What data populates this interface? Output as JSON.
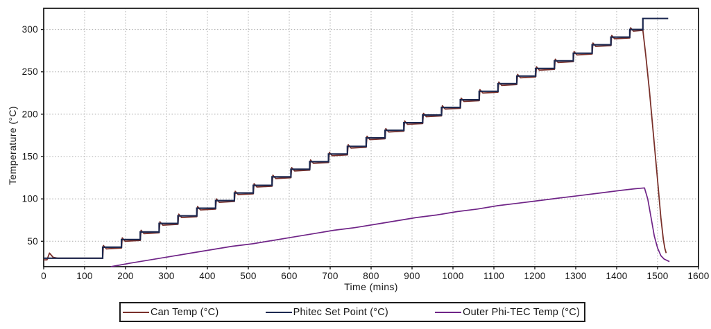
{
  "chart_data": {
    "type": "line",
    "title": "",
    "xlabel": "Time (mins)",
    "ylabel": "Temperature (°C)",
    "xlim": [
      0,
      1600
    ],
    "ylim": [
      20,
      325
    ],
    "xticks": [
      0,
      100,
      200,
      300,
      400,
      500,
      600,
      700,
      800,
      900,
      1000,
      1100,
      1200,
      1300,
      1400,
      1500,
      1600
    ],
    "yticks": [
      50,
      100,
      150,
      200,
      250,
      300
    ],
    "grid": true,
    "grid_color": "#a9a9a9",
    "axis_color": "#1c1c1c",
    "legend_position": "bottom-center",
    "series": [
      {
        "name": "Can Temp (°C)",
        "color": "#79302a",
        "shape": "staircase-follow",
        "baseline": 30,
        "start": [
          [
            0,
            28
          ],
          [
            8,
            28
          ],
          [
            14,
            36
          ],
          [
            23,
            31
          ],
          [
            34,
            30
          ]
        ],
        "drop": [
          [
            1464,
            299
          ],
          [
            1471,
            270
          ],
          [
            1480,
            228
          ],
          [
            1490,
            175
          ],
          [
            1500,
            122
          ],
          [
            1508,
            78
          ],
          [
            1514,
            52
          ],
          [
            1518,
            41
          ],
          [
            1521,
            36
          ]
        ]
      },
      {
        "name": "Phitec Set Point (°C)",
        "color": "#1d2950",
        "shape": "staircase",
        "baseline": 30,
        "risers": [
          [
            144,
            43
          ],
          [
            190,
            52
          ],
          [
            236,
            61
          ],
          [
            282,
            71
          ],
          [
            328,
            80
          ],
          [
            374,
            89
          ],
          [
            420,
            98
          ],
          [
            466,
            107
          ],
          [
            512,
            116
          ],
          [
            558,
            126
          ],
          [
            604,
            135
          ],
          [
            650,
            144
          ],
          [
            696,
            153
          ],
          [
            742,
            162
          ],
          [
            788,
            172
          ],
          [
            834,
            181
          ],
          [
            880,
            190
          ],
          [
            926,
            199
          ],
          [
            972,
            208
          ],
          [
            1018,
            217
          ],
          [
            1064,
            227
          ],
          [
            1110,
            236
          ],
          [
            1156,
            245
          ],
          [
            1202,
            254
          ],
          [
            1248,
            263
          ],
          [
            1294,
            272
          ],
          [
            1340,
            282
          ],
          [
            1386,
            291
          ],
          [
            1432,
            300
          ]
        ],
        "end_jump": {
          "t": 1464,
          "v": 313,
          "until": 1526
        }
      },
      {
        "name": "Outer Phi-TEC Temp (°C)",
        "color": "#6f2487",
        "shape": "poly",
        "points": [
          [
            164,
            20
          ],
          [
            210,
            24
          ],
          [
            260,
            28
          ],
          [
            310,
            32
          ],
          [
            360,
            36
          ],
          [
            410,
            40
          ],
          [
            460,
            44
          ],
          [
            510,
            47
          ],
          [
            560,
            51
          ],
          [
            610,
            55
          ],
          [
            660,
            59
          ],
          [
            710,
            63
          ],
          [
            760,
            66
          ],
          [
            810,
            70
          ],
          [
            860,
            74
          ],
          [
            910,
            78
          ],
          [
            960,
            81
          ],
          [
            1010,
            85
          ],
          [
            1060,
            88
          ],
          [
            1110,
            92
          ],
          [
            1160,
            95
          ],
          [
            1210,
            98
          ],
          [
            1260,
            101
          ],
          [
            1310,
            104
          ],
          [
            1360,
            107
          ],
          [
            1410,
            110
          ],
          [
            1445,
            112
          ],
          [
            1468,
            113
          ],
          [
            1476,
            100
          ],
          [
            1484,
            78
          ],
          [
            1492,
            56
          ],
          [
            1500,
            42
          ],
          [
            1508,
            33
          ],
          [
            1516,
            29
          ],
          [
            1529,
            26
          ]
        ]
      }
    ]
  },
  "legend": {
    "border_color": "#1c1c1c"
  }
}
